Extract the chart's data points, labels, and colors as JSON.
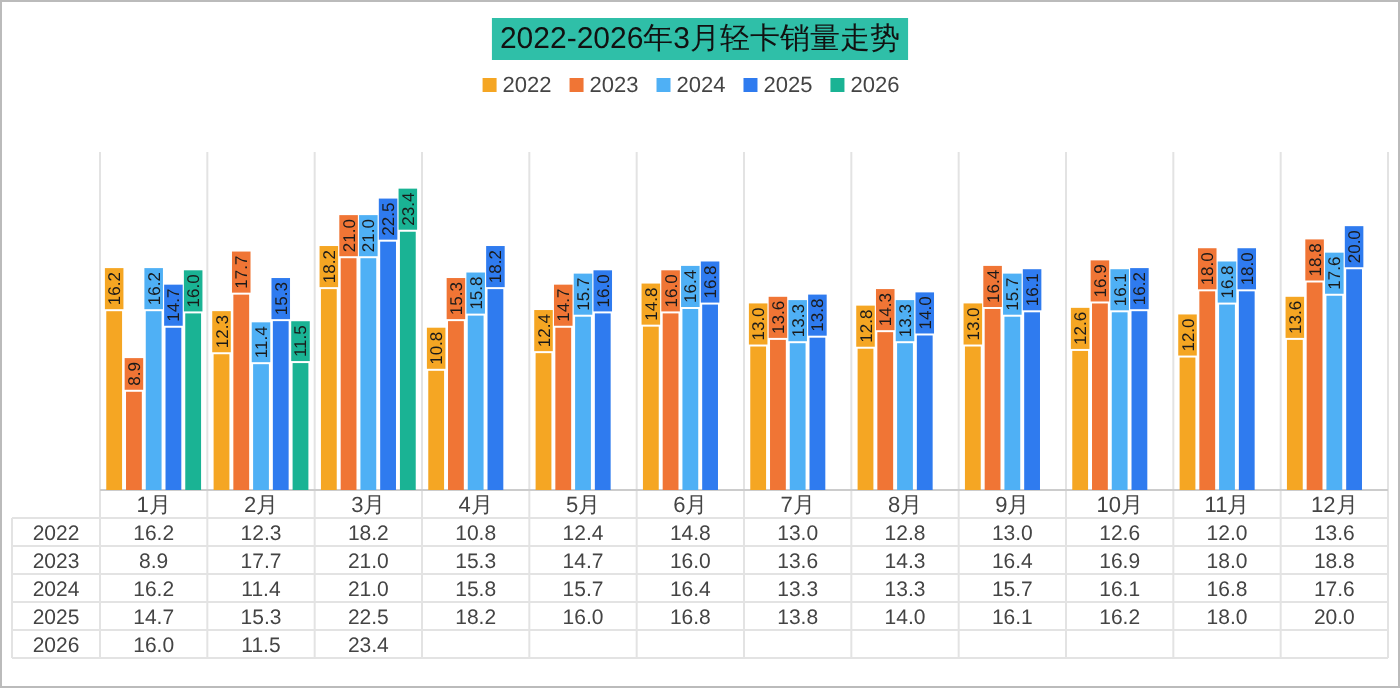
{
  "chart_data": {
    "type": "bar",
    "title": "2022-2026年3月轻卡销量走势",
    "categories": [
      "1月",
      "2月",
      "3月",
      "4月",
      "5月",
      "6月",
      "7月",
      "8月",
      "9月",
      "10月",
      "11月",
      "12月"
    ],
    "series": [
      {
        "name": "2022",
        "color": "#f5a623",
        "values": [
          16.2,
          12.3,
          18.2,
          10.8,
          12.4,
          14.8,
          13.0,
          12.8,
          13.0,
          12.6,
          12.0,
          13.6
        ],
        "value_labels": [
          "16.2",
          "12.3",
          "18.2",
          "10.8",
          "12.4",
          "14.8",
          "13.0",
          "12.8",
          "13.0",
          "12.6",
          "12.0",
          "13.6"
        ]
      },
      {
        "name": "2023",
        "color": "#f07535",
        "values": [
          8.9,
          17.7,
          21.0,
          15.3,
          14.7,
          16.0,
          13.6,
          14.3,
          16.4,
          16.9,
          18.0,
          18.8
        ],
        "value_labels": [
          "8.9",
          "17.7",
          "21.0",
          "15.3",
          "14.7",
          "16.0",
          "13.6",
          "14.3",
          "16.4",
          "16.9",
          "18.0",
          "18.8"
        ]
      },
      {
        "name": "2024",
        "color": "#4fb0f5",
        "values": [
          16.2,
          11.4,
          21.0,
          15.8,
          15.7,
          16.4,
          13.3,
          13.3,
          15.7,
          16.1,
          16.8,
          17.6
        ],
        "value_labels": [
          "16.2",
          "11.4",
          "21.0",
          "15.8",
          "15.7",
          "16.4",
          "13.3",
          "13.3",
          "15.7",
          "16.1",
          "16.8",
          "17.6"
        ]
      },
      {
        "name": "2025",
        "color": "#2f7bef",
        "values": [
          14.7,
          15.3,
          22.5,
          18.2,
          16.0,
          16.8,
          13.8,
          14.0,
          16.1,
          16.2,
          18.0,
          20.0
        ],
        "value_labels": [
          "14.7",
          "15.3",
          "22.5",
          "18.2",
          "16.0",
          "16.8",
          "13.8",
          "14.0",
          "16.1",
          "16.2",
          "18.0",
          "20.0"
        ]
      },
      {
        "name": "2026",
        "color": "#1ab394",
        "values": [
          16.0,
          11.5,
          23.4,
          null,
          null,
          null,
          null,
          null,
          null,
          null,
          null,
          null
        ],
        "value_labels": [
          "16.0",
          "11.5",
          "23.4",
          null,
          null,
          null,
          null,
          null,
          null,
          null,
          null,
          null
        ]
      }
    ],
    "ylim": [
      0,
      27
    ],
    "legend": "top",
    "tick_labels": "x"
  }
}
